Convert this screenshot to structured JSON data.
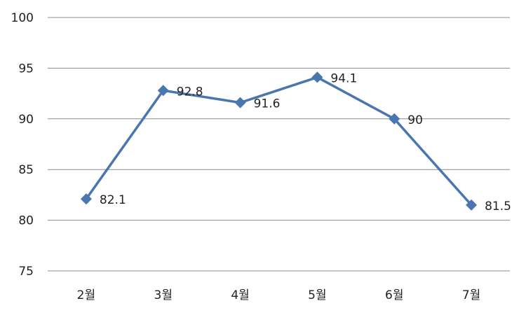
{
  "chart_data": {
    "type": "line",
    "title": "",
    "xlabel": "",
    "ylabel": "",
    "categories": [
      "2월",
      "3월",
      "4월",
      "5월",
      "6월",
      "7월"
    ],
    "series": [
      {
        "values": [
          82.1,
          92.8,
          91.6,
          94.1,
          90,
          81.5
        ]
      }
    ],
    "data_labels": [
      "82.1",
      "92.8",
      "91.6",
      "94.1",
      "90",
      "81.5"
    ],
    "ylim": [
      75,
      100
    ],
    "yticks": [
      "75",
      "80",
      "85",
      "90",
      "95",
      "100"
    ],
    "grid": true,
    "legend": "none",
    "colors": {
      "series": "#4a76b0",
      "grid": "#8c8c8c"
    }
  }
}
